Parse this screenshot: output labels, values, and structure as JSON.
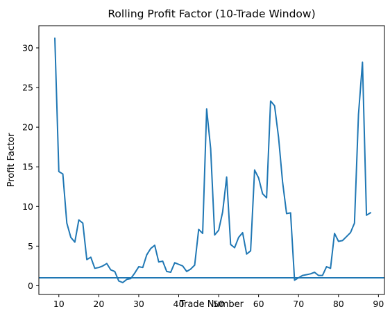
{
  "chart_data": {
    "type": "line",
    "title": "Rolling Profit Factor (10-Trade Window)",
    "xlabel": "Trade Number",
    "ylabel": "Profit Factor",
    "xlim": [
      5,
      91.5
    ],
    "ylim": [
      -1.1,
      32.8
    ],
    "x_ticks": [
      10,
      20,
      30,
      40,
      50,
      60,
      70,
      80,
      90
    ],
    "y_ticks": [
      0,
      5,
      10,
      15,
      20,
      25,
      30
    ],
    "grid": false,
    "line_color": "#1f77b4",
    "reference_line": {
      "y": 1.0,
      "color": "#1f77b4"
    },
    "series": [
      {
        "x": [
          9,
          10,
          11,
          12,
          13,
          14,
          15,
          16,
          17,
          18,
          19,
          20,
          21,
          22,
          23,
          24,
          25,
          26,
          27,
          28,
          29,
          30,
          31,
          32,
          33,
          34,
          35,
          36,
          37,
          38,
          39,
          40,
          41,
          42,
          43,
          44,
          45,
          46,
          47,
          48,
          49,
          50,
          51,
          52,
          53,
          54,
          55,
          56,
          57,
          58,
          59,
          60,
          61,
          62,
          63,
          64,
          65,
          66,
          67,
          68,
          69,
          70,
          71,
          72,
          73,
          74,
          75,
          76,
          77,
          78,
          79,
          80,
          81,
          82,
          83,
          84,
          85,
          86,
          87,
          88
        ],
        "y": [
          31.2,
          14.4,
          14.1,
          7.9,
          6.1,
          5.5,
          8.3,
          7.9,
          3.3,
          3.6,
          2.2,
          2.3,
          2.5,
          2.8,
          2.0,
          1.8,
          0.6,
          0.4,
          0.8,
          0.9,
          1.6,
          2.4,
          2.3,
          3.9,
          4.7,
          5.1,
          3.0,
          3.1,
          1.8,
          1.7,
          2.9,
          2.7,
          2.5,
          1.8,
          2.1,
          2.6,
          7.1,
          6.6,
          22.3,
          17.3,
          6.4,
          7.0,
          9.3,
          13.7,
          5.2,
          4.8,
          6.1,
          6.7,
          4.0,
          4.4,
          14.6,
          13.6,
          11.6,
          11.1,
          23.3,
          22.7,
          18.7,
          13.1,
          9.1,
          9.2,
          0.7,
          1.0,
          1.3,
          1.4,
          1.5,
          1.7,
          1.3,
          1.3,
          2.4,
          2.2,
          6.6,
          5.6,
          5.7,
          6.2,
          6.7,
          7.9,
          21.6,
          28.2,
          8.9,
          9.2
        ]
      }
    ]
  }
}
